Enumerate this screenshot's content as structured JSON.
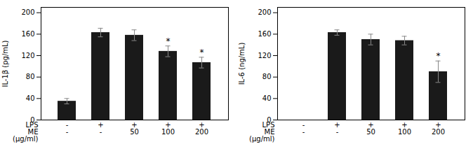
{
  "chart_data": [
    {
      "type": "bar",
      "y_label": "IL-1β (pg/mL)",
      "categories": [
        "-\n-",
        "+\n-",
        "+\n50",
        "+\n100",
        "+\n200"
      ],
      "values": [
        35,
        163,
        158,
        128,
        107
      ],
      "errors": [
        5,
        8,
        10,
        10,
        10
      ],
      "significance": [
        null,
        null,
        null,
        "*",
        "*"
      ],
      "annotations": [
        "LPS",
        "ME",
        "(µg/ml)"
      ],
      "color": "#1a1a1a",
      "ylim": [
        0,
        210
      ],
      "yticks": [
        0,
        40,
        80,
        120,
        160,
        200
      ],
      "grid": false
    },
    {
      "type": "bar",
      "y_label": "IL-6 (ng/mL)",
      "categories": [
        "-\n-",
        "+\n-",
        "+\n50",
        "+\n100",
        "+\n200"
      ],
      "values": [
        0,
        163,
        150,
        148,
        90
      ],
      "errors": [
        0,
        5,
        10,
        8,
        20
      ],
      "significance": [
        null,
        null,
        null,
        null,
        "*"
      ],
      "annotations": [
        "LPS",
        "ME",
        "(µg/ml)"
      ],
      "color": "#1a1a1a",
      "ylim": [
        0,
        210
      ],
      "yticks": [
        0,
        40,
        80,
        120,
        160,
        200
      ],
      "grid": false
    }
  ]
}
